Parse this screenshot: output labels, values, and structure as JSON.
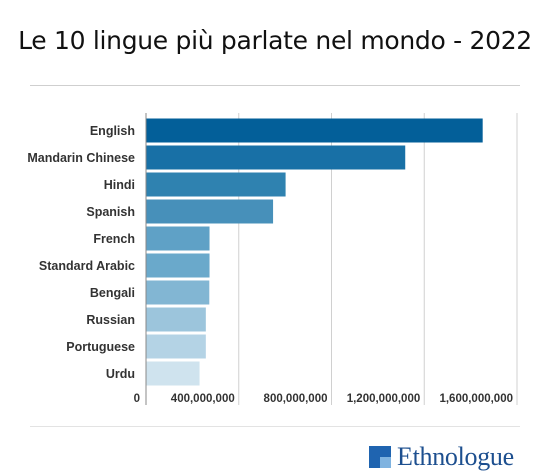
{
  "title": "Le 10 lingue più parlate nel mondo - 2022",
  "logo": {
    "text": "Ethnologue"
  },
  "colors": {
    "bars": [
      "#035f99",
      "#1870a6",
      "#2f82b0",
      "#4790ba",
      "#5fa1c6",
      "#6aa9cb",
      "#82b6d3",
      "#9cc5dc",
      "#b4d3e5",
      "#cfe3ee"
    ],
    "axis": "#888888",
    "grid": "#d0d0d0"
  },
  "chart_data": {
    "type": "bar",
    "orientation": "horizontal",
    "categories": [
      "English",
      "Mandarin Chinese",
      "Hindi",
      "Spanish",
      "French",
      "Standard Arabic",
      "Bengali",
      "Russian",
      "Portuguese",
      "Urdu"
    ],
    "values": [
      1452000000,
      1118000000,
      602000000,
      548000000,
      274000000,
      274000000,
      273000000,
      258000000,
      258000000,
      231000000
    ],
    "xlim": [
      0,
      1600000000
    ],
    "xticks": [
      0,
      400000000,
      800000000,
      1200000000,
      1600000000
    ],
    "xtick_labels": [
      "0",
      "400,000,000",
      "800,000,000",
      "1,200,000,000",
      "1,600,000,000"
    ],
    "grid": true
  }
}
